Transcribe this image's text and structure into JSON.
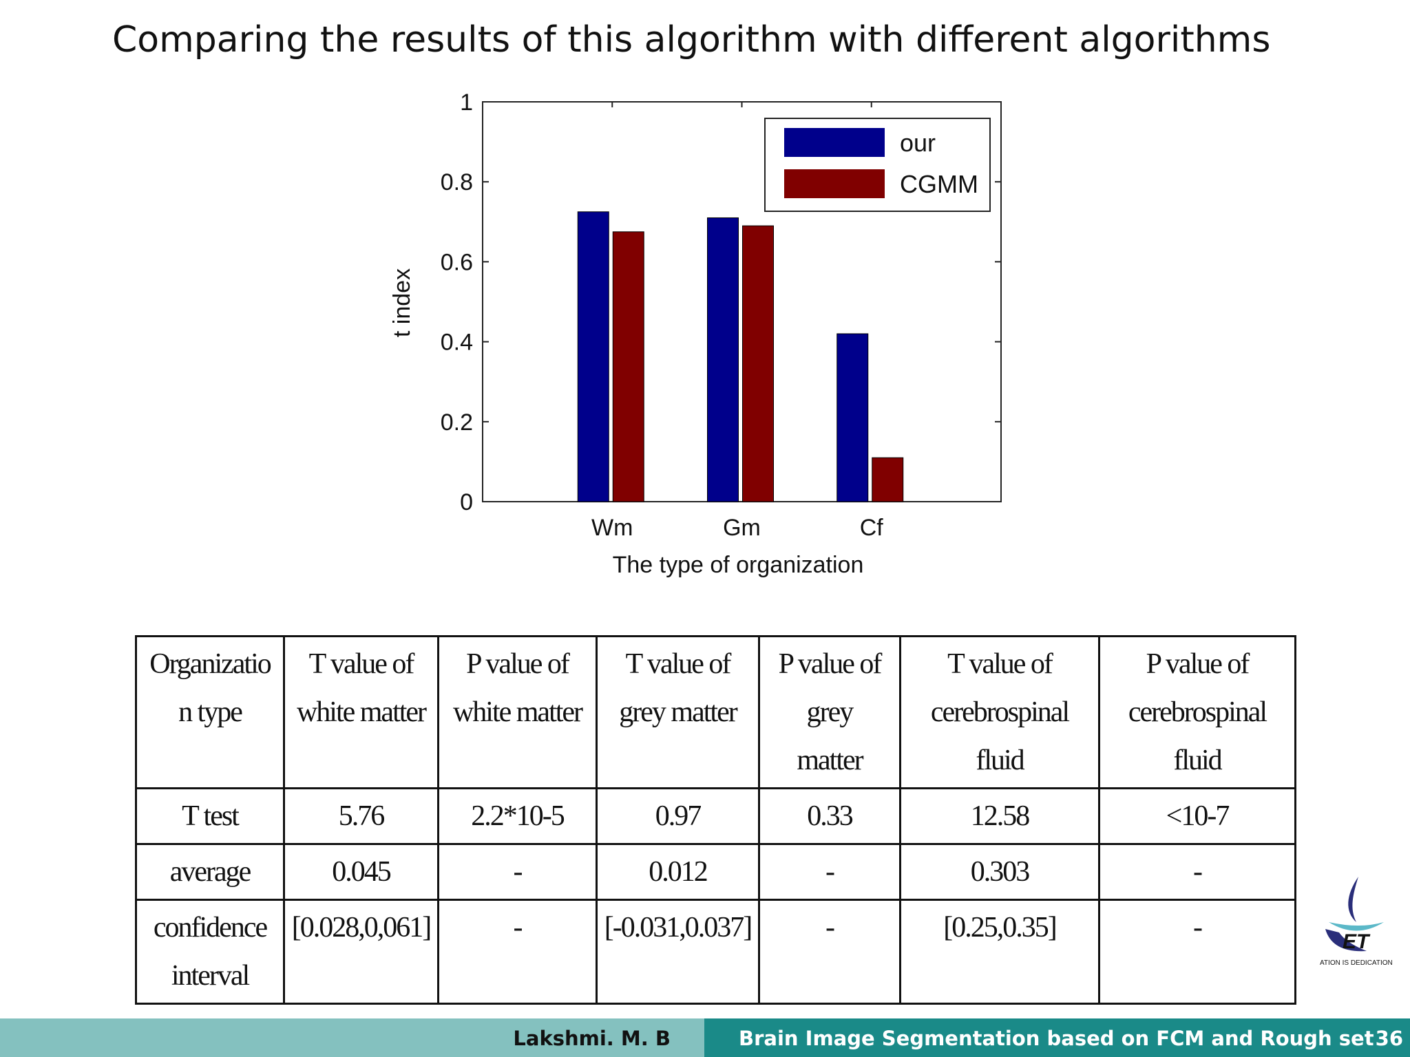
{
  "slide_title": "Comparing the results of this algorithm with different algorithms",
  "chart_data": {
    "type": "bar",
    "ylabel": "t index",
    "xlabel": "The type of organization",
    "categories": [
      "Wm",
      "Gm",
      "Cf"
    ],
    "series": [
      {
        "name": "our",
        "color": "#00008b",
        "values": [
          0.725,
          0.71,
          0.42
        ]
      },
      {
        "name": "CGMM",
        "color": "#800000",
        "values": [
          0.675,
          0.69,
          0.11
        ]
      }
    ],
    "ylim": [
      0,
      1
    ],
    "yticks": [
      0,
      0.2,
      0.4,
      0.6,
      0.8,
      1
    ],
    "legend": "upper right"
  },
  "table": {
    "header": [
      [
        "Organizatio",
        "n type"
      ],
      [
        "T value of",
        "white matter"
      ],
      [
        "P value of",
        "white matter"
      ],
      [
        "T value of",
        "grey matter"
      ],
      [
        "P value of",
        "grey",
        "matter"
      ],
      [
        "T value of",
        "cerebrospinal",
        "fluid"
      ],
      [
        "P  value of",
        "cerebrospinal",
        "fluid"
      ]
    ],
    "rows": [
      [
        "T test",
        "5.76",
        "2.2*10-5",
        "0.97",
        "0.33",
        "12.58",
        "<10-7"
      ],
      [
        "average",
        "0.045",
        "-",
        "0.012",
        "-",
        "0.303",
        "-"
      ],
      [
        "confidence interval",
        "[0.028,0,061]",
        "-",
        "[-0.031,0.037]",
        "-",
        "[0.25,0.35]",
        "-"
      ]
    ]
  },
  "logo_text": "ATION IS DEDICATION",
  "footer": {
    "author": "Lakshmi. M. B",
    "talk": "Brain Image Segmentation based on FCM and Rough set",
    "page": "36"
  }
}
